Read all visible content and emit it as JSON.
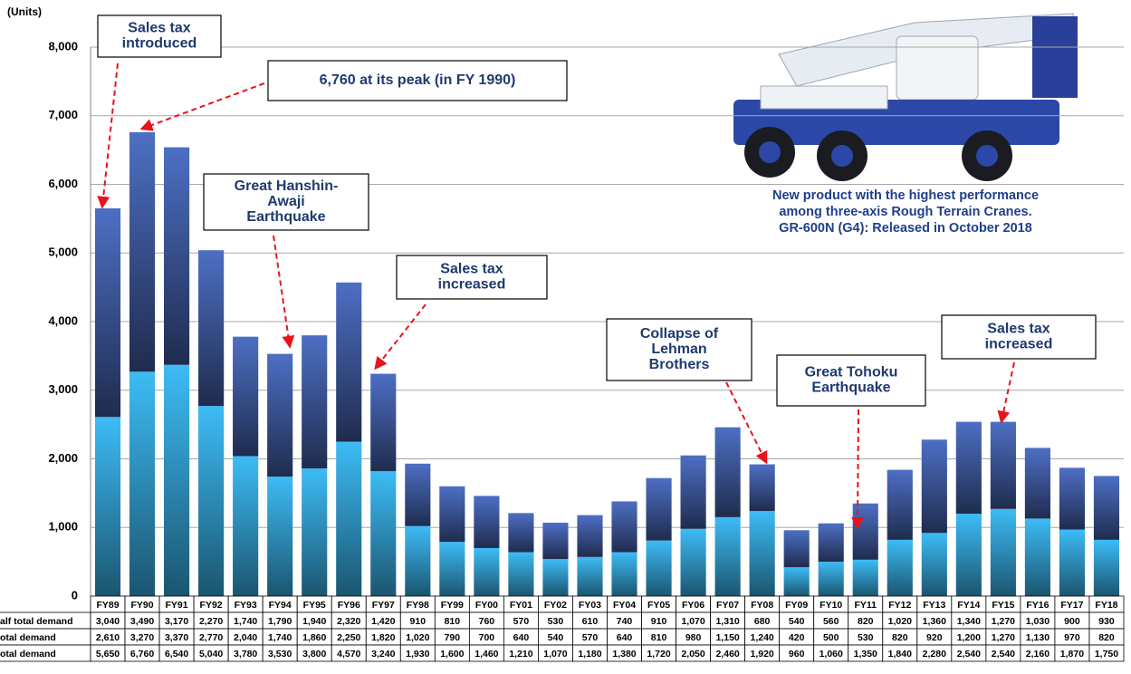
{
  "chart_data": {
    "type": "stacked-bar",
    "y_label": "(Units)",
    "ylim": [
      0,
      8000
    ],
    "yticks": [
      0,
      {
        "value": 1000,
        "label": "1,000"
      },
      {
        "value": 2000,
        "label": "2,000"
      },
      {
        "value": 3000,
        "label": "3,000"
      },
      {
        "value": 4000,
        "label": "4,000"
      },
      {
        "value": 5000,
        "label": "5,000"
      },
      {
        "value": 6000,
        "label": "6,000"
      },
      {
        "value": 7000,
        "label": "7,000"
      },
      {
        "value": 8000,
        "label": "8,000"
      }
    ],
    "grid": true,
    "categories": [
      "FY89",
      "FY90",
      "FY91",
      "FY92",
      "FY93",
      "FY94",
      "FY95",
      "FY96",
      "FY97",
      "FY98",
      "FY99",
      "FY00",
      "FY01",
      "FY02",
      "FY03",
      "FY04",
      "FY05",
      "FY06",
      "FY07",
      "FY08",
      "FY09",
      "FY10",
      "FY11",
      "FY12",
      "FY13",
      "FY14",
      "FY15",
      "FY16",
      "FY17",
      "FY18"
    ],
    "series": [
      {
        "name": "otal demand",
        "color": "#3dbcf6",
        "values": [
          2610,
          3270,
          3370,
          2770,
          2040,
          1740,
          1860,
          2250,
          1820,
          1020,
          790,
          700,
          640,
          540,
          570,
          640,
          810,
          980,
          1150,
          1240,
          420,
          500,
          530,
          820,
          920,
          1200,
          1270,
          1130,
          970,
          820
        ],
        "value_labels": [
          "2,610",
          "3,270",
          "3,370",
          "2,770",
          "2,040",
          "1,740",
          "1,860",
          "2,250",
          "1,820",
          "1,020",
          "790",
          "700",
          "640",
          "540",
          "570",
          "640",
          "810",
          "980",
          "1,150",
          "1,240",
          "420",
          "500",
          "530",
          "820",
          "920",
          "1,200",
          "1,270",
          "1,130",
          "970",
          "820"
        ]
      },
      {
        "name": "alf total demand",
        "color": "#4d6fc4",
        "values": [
          3040,
          3490,
          3170,
          2270,
          1740,
          1790,
          1940,
          2320,
          1420,
          910,
          810,
          760,
          570,
          530,
          610,
          740,
          910,
          1070,
          1310,
          680,
          540,
          560,
          820,
          1020,
          1360,
          1340,
          1270,
          1030,
          900,
          930
        ],
        "value_labels": [
          "3,040",
          "3,490",
          "3,170",
          "2,270",
          "1,740",
          "1,790",
          "1,940",
          "2,320",
          "1,420",
          "910",
          "810",
          "760",
          "570",
          "530",
          "610",
          "740",
          "910",
          "1,070",
          "1,310",
          "680",
          "540",
          "560",
          "820",
          "1,020",
          "1,360",
          "1,340",
          "1,270",
          "1,030",
          "900",
          "930"
        ]
      }
    ],
    "totals": {
      "name": "otal demand",
      "values": [
        5650,
        6760,
        6540,
        5040,
        3780,
        3530,
        3800,
        4570,
        3240,
        1930,
        1600,
        1460,
        1210,
        1070,
        1180,
        1380,
        1720,
        2050,
        2460,
        1920,
        960,
        1060,
        1350,
        1840,
        2280,
        2540,
        2540,
        2160,
        1870,
        1750
      ],
      "value_labels": [
        "5,650",
        "6,760",
        "6,540",
        "5,040",
        "3,780",
        "3,530",
        "3,800",
        "4,570",
        "3,240",
        "1,930",
        "1,600",
        "1,460",
        "1,210",
        "1,070",
        "1,180",
        "1,380",
        "1,720",
        "2,050",
        "2,460",
        "1,920",
        "960",
        "1,060",
        "1,350",
        "1,840",
        "2,280",
        "2,540",
        "2,540",
        "2,160",
        "1,870",
        "1,750"
      ]
    },
    "annotations": [
      {
        "lines": [
          "Sales tax",
          "introduced"
        ]
      },
      {
        "lines": [
          "6,760 at its peak (in FY 1990)"
        ]
      },
      {
        "lines": [
          "Great Hanshin-",
          "Awaji",
          "Earthquake"
        ]
      },
      {
        "lines": [
          "Sales tax",
          "increased"
        ]
      },
      {
        "lines": [
          "Collapse of",
          "Lehman",
          "Brothers"
        ]
      },
      {
        "lines": [
          "Great Tohoku",
          "Earthquake"
        ]
      },
      {
        "lines": [
          "Sales tax",
          "increased"
        ]
      }
    ],
    "caption": [
      "New product with the highest performance",
      "among three-axis Rough Terrain Cranes.",
      "GR-600N (G4): Released in October 2018"
    ]
  }
}
